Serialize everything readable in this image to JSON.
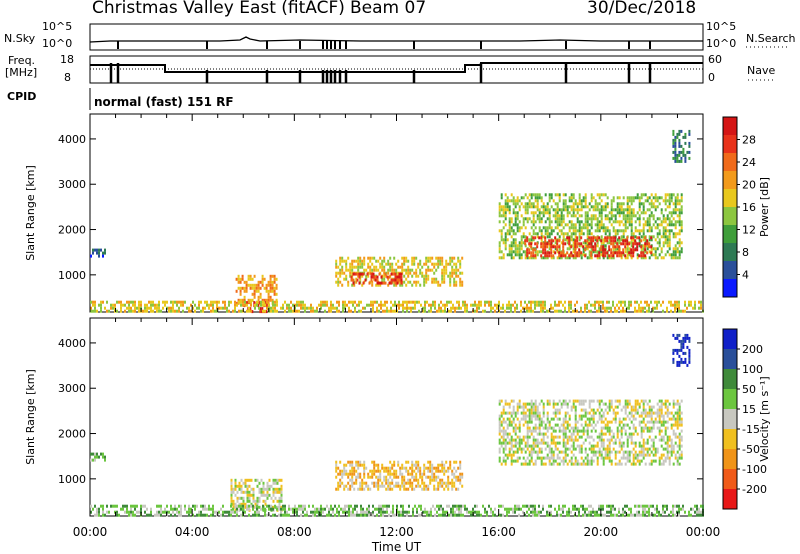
{
  "header": {
    "station": "Christmas Valley East (fitACF)",
    "beam": "Beam 07",
    "date": "30/Dec/2018"
  },
  "strip": {
    "nsky_label": "N.Sky",
    "nsky_ticks": [
      "10^5",
      "10^0"
    ],
    "nsearch_label": "N.Search",
    "nsearch_ticks": [
      "10^5",
      "10^0"
    ],
    "freq_label": "Freq.",
    "freq_unit": "[MHz]",
    "freq_ticks": [
      "18",
      "8"
    ],
    "nave_label": "Nave",
    "nave_ticks": [
      "60",
      "0"
    ],
    "cpid_label": "CPID",
    "cpid_value": "normal (fast) 151 RF"
  },
  "chart_data": [
    {
      "type": "heatmap",
      "name": "power",
      "ylabel": "Slant Range [km]",
      "yticks": [
        1000,
        2000,
        3000,
        4000
      ],
      "ylim": [
        180,
        4550
      ],
      "xlim": [
        0,
        24
      ],
      "colorbar": {
        "label": "Power [dB]",
        "ticks": [
          "4",
          "8",
          "12",
          "16",
          "20",
          "24",
          "28"
        ],
        "colors": [
          "#0a1aff",
          "#2a4f9a",
          "#2e7a54",
          "#3f9e3a",
          "#8cc63f",
          "#e8c81e",
          "#f29a1b",
          "#f06a1a",
          "#e8321a",
          "#d41515"
        ]
      },
      "regions": [
        {
          "t0": 0.0,
          "t1": 0.55,
          "r0": 1420,
          "r1": 1580,
          "level": 1
        },
        {
          "t0": 5.7,
          "t1": 7.3,
          "r0": 350,
          "r1": 1000,
          "level": 6
        },
        {
          "t0": 6.0,
          "t1": 7.0,
          "r0": 190,
          "r1": 420,
          "level": 9
        },
        {
          "t0": 9.6,
          "t1": 14.6,
          "r0": 800,
          "r1": 1400,
          "level": 5
        },
        {
          "t0": 10.2,
          "t1": 12.2,
          "r0": 850,
          "r1": 1050,
          "level": 8
        },
        {
          "t0": 16.0,
          "t1": 23.2,
          "r0": 1400,
          "r1": 2800,
          "level": 4
        },
        {
          "t0": 17.0,
          "t1": 22.0,
          "r0": 1450,
          "r1": 1850,
          "level": 8
        },
        {
          "t0": 22.8,
          "t1": 23.5,
          "r0": 3500,
          "r1": 4200,
          "level": 2
        },
        {
          "t0": 0.0,
          "t1": 24.0,
          "r0": 190,
          "r1": 430,
          "level": 5
        }
      ]
    },
    {
      "type": "heatmap",
      "name": "velocity",
      "xlabel": "Time UT",
      "xticks": [
        "00:00",
        "04:00",
        "08:00",
        "12:00",
        "16:00",
        "20:00",
        "00:00"
      ],
      "ylabel": "Slant Range [km]",
      "yticks": [
        1000,
        2000,
        3000,
        4000
      ],
      "ylim": [
        180,
        4550
      ],
      "xlim": [
        0,
        24
      ],
      "colorbar": {
        "label": "Velocity [m s⁻¹]",
        "ticks": [
          "200",
          "100",
          "50",
          "15",
          "-15",
          "-50",
          "-100",
          "-200"
        ],
        "colors": [
          "#1020c8",
          "#2a4f9a",
          "#3f8a3a",
          "#6cc63f",
          "#c8c8c0",
          "#f0c020",
          "#f09418",
          "#f05a18",
          "#e81818"
        ]
      },
      "regions": [
        {
          "t0": 0.0,
          "t1": 0.55,
          "r0": 1420,
          "r1": 1580,
          "level": 3
        },
        {
          "t0": 5.5,
          "t1": 7.5,
          "r0": 300,
          "r1": 1000,
          "level": 4
        },
        {
          "t0": 9.6,
          "t1": 14.6,
          "r0": 800,
          "r1": 1400,
          "level": 5
        },
        {
          "t0": 16.0,
          "t1": 23.2,
          "r0": 1300,
          "r1": 2750,
          "level": 4
        },
        {
          "t0": 22.8,
          "t1": 23.5,
          "r0": 3500,
          "r1": 4200,
          "level": 0
        },
        {
          "t0": 0.0,
          "t1": 24.0,
          "r0": 190,
          "r1": 430,
          "level": 3
        }
      ]
    }
  ]
}
